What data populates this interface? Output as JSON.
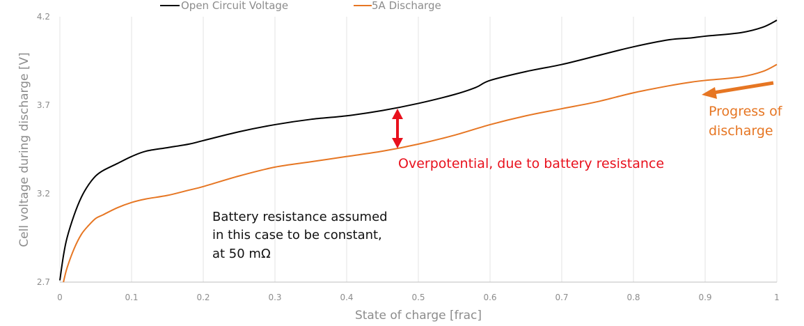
{
  "chart_data": {
    "type": "line",
    "xlabel": "State of charge [frac]",
    "ylabel": "Cell voltage during discharge [V]",
    "xlim": [
      0,
      1
    ],
    "ylim": [
      2.7,
      4.2
    ],
    "x_ticks": [
      "0",
      "0.1",
      "0.2",
      "0.3",
      "0.4",
      "0.5",
      "0.6",
      "0.7",
      "0.8",
      "0.9",
      "1"
    ],
    "y_ticks": [
      "2.7",
      "3.2",
      "3.7",
      "4.2"
    ],
    "grid": "vertical",
    "legend_position": "top",
    "series": [
      {
        "name": "Open Circuit Voltage",
        "color": "#000000",
        "x": [
          0,
          0.005,
          0.01,
          0.02,
          0.03,
          0.04,
          0.05,
          0.06,
          0.08,
          0.1,
          0.12,
          0.15,
          0.18,
          0.2,
          0.25,
          0.3,
          0.35,
          0.4,
          0.45,
          0.5,
          0.55,
          0.58,
          0.6,
          0.65,
          0.7,
          0.75,
          0.8,
          0.85,
          0.88,
          0.9,
          0.95,
          0.98,
          1.0
        ],
        "y": [
          2.71,
          2.85,
          2.95,
          3.08,
          3.18,
          3.25,
          3.3,
          3.33,
          3.37,
          3.41,
          3.44,
          3.46,
          3.48,
          3.5,
          3.55,
          3.59,
          3.62,
          3.64,
          3.67,
          3.71,
          3.76,
          3.8,
          3.84,
          3.89,
          3.93,
          3.98,
          4.03,
          4.07,
          4.08,
          4.09,
          4.11,
          4.14,
          4.18
        ]
      },
      {
        "name": "5A Discharge",
        "color": "#e67623",
        "x": [
          0.005,
          0.01,
          0.02,
          0.03,
          0.04,
          0.05,
          0.06,
          0.08,
          0.1,
          0.12,
          0.15,
          0.18,
          0.2,
          0.25,
          0.3,
          0.35,
          0.4,
          0.45,
          0.5,
          0.55,
          0.6,
          0.65,
          0.7,
          0.75,
          0.8,
          0.85,
          0.88,
          0.9,
          0.95,
          0.98,
          1.0
        ],
        "y": [
          2.7,
          2.78,
          2.89,
          2.97,
          3.02,
          3.06,
          3.08,
          3.12,
          3.15,
          3.17,
          3.19,
          3.22,
          3.24,
          3.3,
          3.35,
          3.38,
          3.41,
          3.44,
          3.48,
          3.53,
          3.59,
          3.64,
          3.68,
          3.72,
          3.77,
          3.81,
          3.83,
          3.84,
          3.86,
          3.89,
          3.93
        ]
      }
    ],
    "annotations": {
      "resistance_note": [
        "Battery resistance assumed",
        "in this case to be constant,",
        "at 50 mΩ"
      ],
      "overpotential": "Overpotential, due to battery resistance",
      "progress": [
        "Progress of",
        "discharge"
      ]
    }
  }
}
